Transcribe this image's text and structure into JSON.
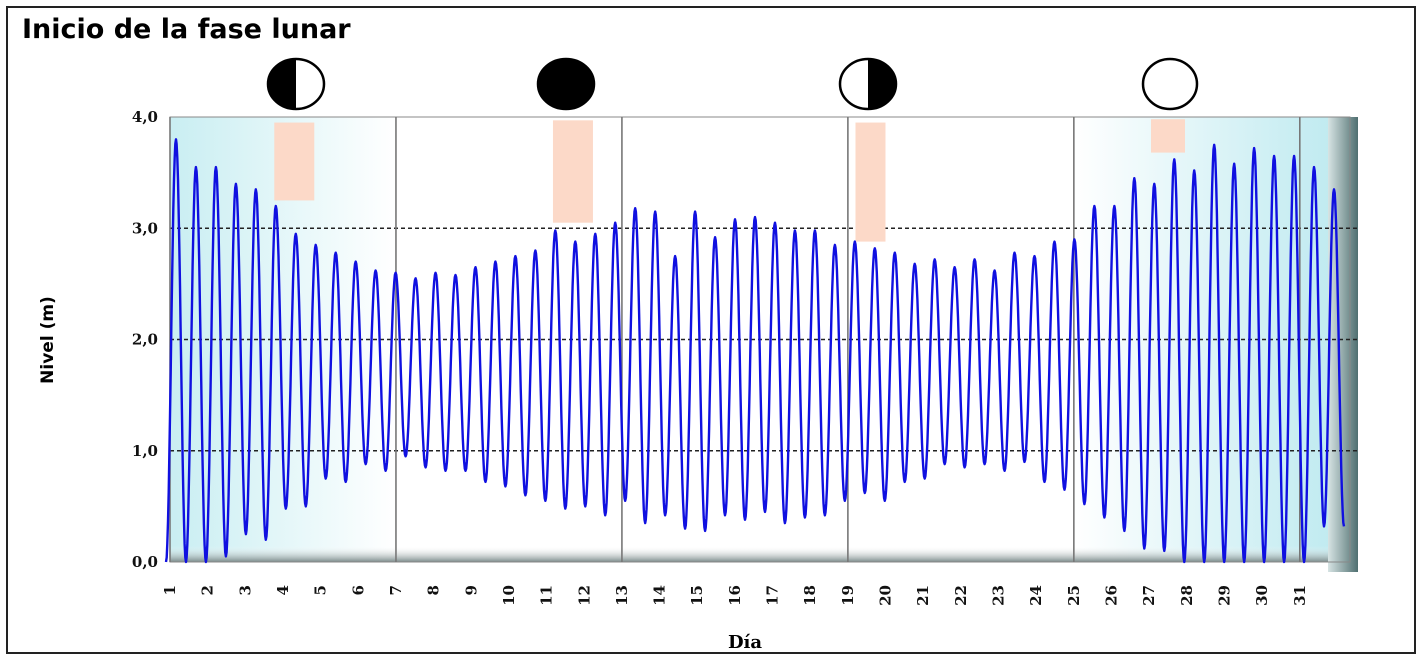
{
  "chart_data": {
    "type": "line",
    "title": "Inicio de la fase lunar",
    "xlabel": "Día",
    "ylabel": "Nivel (m)",
    "ylim": [
      0,
      4
    ],
    "y_ticks": [
      "0,0",
      "1,0",
      "2,0",
      "3,0",
      "4,0"
    ],
    "x_ticks": [
      "1",
      "2",
      "3",
      "4",
      "5",
      "6",
      "7",
      "8",
      "9",
      "10",
      "11",
      "12",
      "13",
      "14",
      "15",
      "16",
      "17",
      "18",
      "19",
      "20",
      "21",
      "22",
      "23",
      "24",
      "25",
      "26",
      "27",
      "28",
      "29",
      "30",
      "31"
    ],
    "xlim": [
      1,
      31.6
    ],
    "series_color": "#1010e0",
    "highs": [
      3.8,
      3.55,
      3.55,
      3.4,
      3.35,
      3.2,
      2.95,
      2.85,
      2.78,
      2.7,
      2.62,
      2.6,
      2.55,
      2.6,
      2.58,
      2.65,
      2.7,
      2.75,
      2.8,
      2.98,
      2.88,
      2.95,
      3.05,
      3.18,
      3.15,
      2.75,
      3.15,
      2.92,
      3.08,
      3.1,
      3.05,
      2.98,
      2.98,
      2.85,
      2.88,
      2.82,
      2.78,
      2.68,
      2.72,
      2.65,
      2.72,
      2.62,
      2.78,
      2.75,
      2.88,
      2.9,
      3.2,
      3.2,
      3.45,
      3.4,
      3.62,
      3.52,
      3.75,
      3.58,
      3.72,
      3.65,
      3.65,
      3.55,
      3.35
    ],
    "lows": [
      0.0,
      0.0,
      0.05,
      0.25,
      0.2,
      0.48,
      0.5,
      0.75,
      0.72,
      0.88,
      0.82,
      0.95,
      0.85,
      0.82,
      0.82,
      0.72,
      0.68,
      0.6,
      0.55,
      0.48,
      0.5,
      0.42,
      0.55,
      0.35,
      0.42,
      0.3,
      0.28,
      0.42,
      0.38,
      0.45,
      0.35,
      0.4,
      0.42,
      0.55,
      0.62,
      0.55,
      0.72,
      0.75,
      0.88,
      0.85,
      0.88,
      0.82,
      0.9,
      0.72,
      0.65,
      0.52,
      0.4,
      0.28,
      0.12,
      0.1,
      0.0,
      0.0,
      0.0,
      0.0,
      0.0,
      0.0,
      0.0,
      0.32
    ],
    "moon_phases": [
      {
        "phase": "cuarto-creciente",
        "day": 4.3,
        "level_from": 3.25,
        "level_to": 3.95
      },
      {
        "phase": "luna-nueva",
        "day": 11.7,
        "level_from": 3.05,
        "level_to": 3.97
      },
      {
        "phase": "cuarto-menguante",
        "day": 19.6,
        "level_from": 2.88,
        "level_to": 3.95
      },
      {
        "phase": "luna-llena",
        "day": 27.5,
        "level_from": 3.68,
        "level_to": 3.98
      }
    ]
  }
}
